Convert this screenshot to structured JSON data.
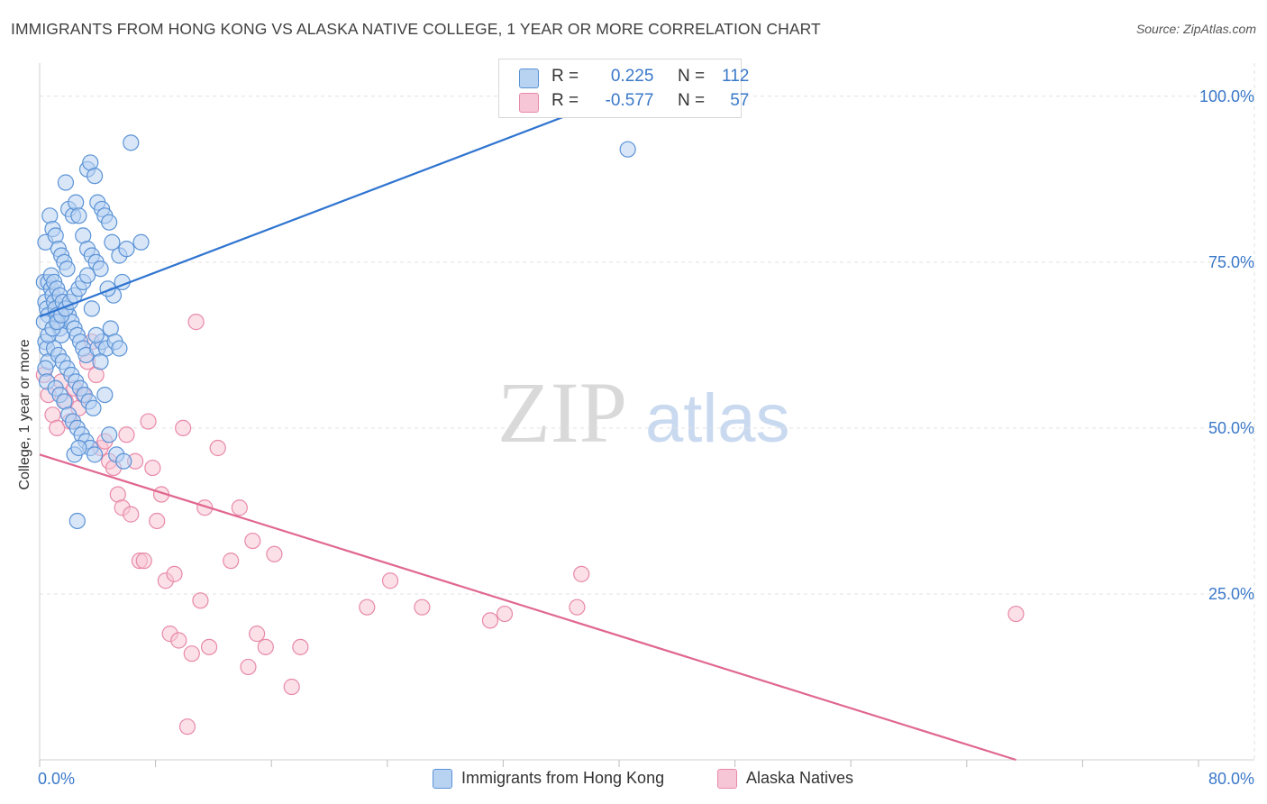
{
  "title": "IMMIGRANTS FROM HONG KONG VS ALASKA NATIVE COLLEGE, 1 YEAR OR MORE CORRELATION CHART",
  "source": "Source: ZipAtlas.com",
  "watermark": {
    "zip": "ZIP",
    "atlas": "atlas"
  },
  "colors": {
    "blue_fill": "#b8d2f2",
    "blue_stroke": "#5b93d6",
    "blue_line": "#2f74d0",
    "pink_fill": "#f7c6d6",
    "pink_stroke": "#e889a9",
    "pink_line": "#e0678f",
    "axis_text": "#3a78c9",
    "grid": "#e2e2e2"
  },
  "legend_top": {
    "rows": [
      {
        "r_label": "R =",
        "r_value": "0.225",
        "n_label": "N =",
        "n_value": "112",
        "color": "#b8d2f2",
        "stroke": "#5b93d6"
      },
      {
        "r_label": "R =",
        "r_value": "-0.577",
        "n_label": "N =",
        "n_value": "57",
        "color": "#f7c6d6",
        "stroke": "#e889a9"
      }
    ]
  },
  "legend_bottom": [
    {
      "label": "Immigrants from Hong Kong",
      "color": "#b8d2f2",
      "stroke": "#5b93d6"
    },
    {
      "label": "Alaska Natives",
      "color": "#f7c6d6",
      "stroke": "#e889a9"
    }
  ],
  "chart_data": {
    "type": "scatter",
    "title": "IMMIGRANTS FROM HONG KONG VS ALASKA NATIVE COLLEGE, 1 YEAR OR MORE CORRELATION CHART",
    "xlabel": "",
    "ylabel": "College, 1 year or more",
    "xlim": [
      0,
      80
    ],
    "ylim": [
      0,
      105
    ],
    "x_tick_labels": [
      "0.0%",
      "80.0%"
    ],
    "y_ticks": [
      25,
      50,
      75,
      100
    ],
    "y_tick_labels": [
      "25.0%",
      "50.0%",
      "75.0%",
      "100.0%"
    ],
    "grid": true,
    "legend_placement": "bottom",
    "series": [
      {
        "name": "Immigrants from Hong Kong",
        "r": 0.225,
        "n": 112,
        "trend": {
          "x": [
            0,
            40.5
          ],
          "y": [
            66.8,
            100.5
          ]
        },
        "points": [
          [
            0.3,
            72
          ],
          [
            0.4,
            69
          ],
          [
            0.5,
            68
          ],
          [
            0.6,
            67
          ],
          [
            0.3,
            66
          ],
          [
            0.4,
            63
          ],
          [
            0.5,
            62
          ],
          [
            0.6,
            60
          ],
          [
            0.4,
            59
          ],
          [
            0.5,
            57
          ],
          [
            0.4,
            78
          ],
          [
            0.6,
            72
          ],
          [
            0.8,
            71
          ],
          [
            0.9,
            70
          ],
          [
            1.0,
            69
          ],
          [
            1.1,
            68
          ],
          [
            1.2,
            67
          ],
          [
            1.3,
            66
          ],
          [
            1.4,
            65
          ],
          [
            1.5,
            64
          ],
          [
            0.7,
            82
          ],
          [
            0.9,
            80
          ],
          [
            1.1,
            79
          ],
          [
            1.3,
            77
          ],
          [
            1.5,
            76
          ],
          [
            1.7,
            75
          ],
          [
            1.9,
            74
          ],
          [
            0.8,
            73
          ],
          [
            1.0,
            72
          ],
          [
            1.2,
            71
          ],
          [
            1.4,
            70
          ],
          [
            1.6,
            69
          ],
          [
            1.8,
            68
          ],
          [
            2.0,
            67
          ],
          [
            2.2,
            66
          ],
          [
            2.4,
            65
          ],
          [
            2.6,
            64
          ],
          [
            2.8,
            63
          ],
          [
            3.0,
            62
          ],
          [
            3.2,
            61
          ],
          [
            1.8,
            87
          ],
          [
            2.0,
            83
          ],
          [
            2.3,
            82
          ],
          [
            2.5,
            84
          ],
          [
            2.7,
            82
          ],
          [
            3.0,
            79
          ],
          [
            3.3,
            77
          ],
          [
            3.6,
            76
          ],
          [
            3.9,
            75
          ],
          [
            4.2,
            74
          ],
          [
            3.3,
            89
          ],
          [
            3.5,
            90
          ],
          [
            3.8,
            88
          ],
          [
            4.0,
            84
          ],
          [
            4.3,
            83
          ],
          [
            4.5,
            82
          ],
          [
            4.8,
            81
          ],
          [
            5.0,
            78
          ],
          [
            5.5,
            76
          ],
          [
            6.0,
            77
          ],
          [
            1.0,
            62
          ],
          [
            1.3,
            61
          ],
          [
            1.6,
            60
          ],
          [
            1.9,
            59
          ],
          [
            2.2,
            58
          ],
          [
            2.5,
            57
          ],
          [
            2.8,
            56
          ],
          [
            3.1,
            55
          ],
          [
            3.4,
            54
          ],
          [
            3.7,
            53
          ],
          [
            1.1,
            56
          ],
          [
            1.4,
            55
          ],
          [
            1.7,
            54
          ],
          [
            2.0,
            52
          ],
          [
            2.3,
            51
          ],
          [
            2.6,
            50
          ],
          [
            2.9,
            49
          ],
          [
            3.2,
            48
          ],
          [
            3.5,
            47
          ],
          [
            3.8,
            46
          ],
          [
            4.0,
            62
          ],
          [
            4.3,
            63
          ],
          [
            4.6,
            62
          ],
          [
            4.9,
            65
          ],
          [
            5.2,
            63
          ],
          [
            5.5,
            62
          ],
          [
            2.4,
            46
          ],
          [
            2.7,
            47
          ],
          [
            4.8,
            49
          ],
          [
            5.3,
            46
          ],
          [
            2.6,
            36
          ],
          [
            5.8,
            45
          ],
          [
            6.3,
            93
          ],
          [
            0.6,
            64
          ],
          [
            0.9,
            65
          ],
          [
            1.2,
            66
          ],
          [
            1.5,
            67
          ],
          [
            1.8,
            68
          ],
          [
            2.1,
            69
          ],
          [
            2.4,
            70
          ],
          [
            2.7,
            71
          ],
          [
            3.0,
            72
          ],
          [
            3.3,
            73
          ],
          [
            3.6,
            68
          ],
          [
            3.9,
            64
          ],
          [
            4.2,
            60
          ],
          [
            4.5,
            55
          ],
          [
            5.1,
            70
          ],
          [
            5.7,
            72
          ],
          [
            40.6,
            92
          ],
          [
            7.0,
            78
          ],
          [
            4.7,
            71
          ]
        ]
      },
      {
        "name": "Alaska Natives",
        "r": -0.577,
        "n": 57,
        "trend": {
          "x": [
            0,
            67.4
          ],
          "y": [
            46,
            0
          ]
        },
        "points": [
          [
            0.3,
            58
          ],
          [
            0.6,
            55
          ],
          [
            0.9,
            52
          ],
          [
            1.2,
            50
          ],
          [
            1.5,
            57
          ],
          [
            1.8,
            54
          ],
          [
            2.1,
            51
          ],
          [
            2.4,
            56
          ],
          [
            2.7,
            53
          ],
          [
            3.0,
            55
          ],
          [
            3.3,
            60
          ],
          [
            3.6,
            63
          ],
          [
            3.9,
            58
          ],
          [
            4.2,
            47
          ],
          [
            4.5,
            48
          ],
          [
            4.8,
            45
          ],
          [
            5.1,
            44
          ],
          [
            5.4,
            40
          ],
          [
            5.7,
            38
          ],
          [
            6.0,
            49
          ],
          [
            6.3,
            37
          ],
          [
            6.6,
            45
          ],
          [
            6.9,
            30
          ],
          [
            7.2,
            30
          ],
          [
            7.5,
            51
          ],
          [
            7.8,
            44
          ],
          [
            8.1,
            36
          ],
          [
            8.4,
            40
          ],
          [
            8.7,
            27
          ],
          [
            9.0,
            19
          ],
          [
            9.3,
            28
          ],
          [
            9.6,
            18
          ],
          [
            9.9,
            50
          ],
          [
            10.2,
            5
          ],
          [
            10.5,
            16
          ],
          [
            10.8,
            66
          ],
          [
            11.1,
            24
          ],
          [
            11.4,
            38
          ],
          [
            11.7,
            17
          ],
          [
            12.3,
            47
          ],
          [
            13.2,
            30
          ],
          [
            13.8,
            38
          ],
          [
            14.4,
            14
          ],
          [
            14.7,
            33
          ],
          [
            15.0,
            19
          ],
          [
            15.6,
            17
          ],
          [
            16.2,
            31
          ],
          [
            17.4,
            11
          ],
          [
            18.0,
            17
          ],
          [
            22.6,
            23
          ],
          [
            24.2,
            27
          ],
          [
            26.4,
            23
          ],
          [
            31.1,
            21
          ],
          [
            32.1,
            22
          ],
          [
            37.1,
            23
          ],
          [
            37.4,
            28
          ],
          [
            67.4,
            22
          ]
        ]
      }
    ]
  }
}
